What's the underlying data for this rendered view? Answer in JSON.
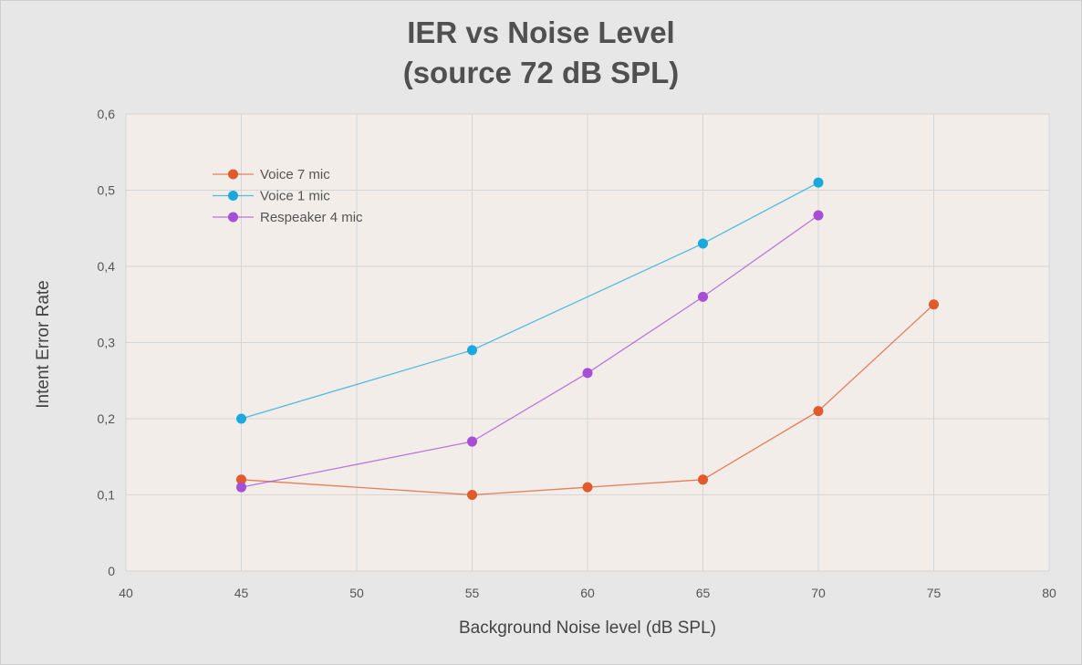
{
  "chart_data": {
    "type": "line",
    "title": "IER vs Noise Level",
    "subtitle": "(source 72 dB SPL)",
    "xlabel": "Background Noise level (dB SPL)",
    "ylabel": "Intent Error Rate",
    "xlim": [
      40,
      80
    ],
    "ylim": [
      0,
      0.6
    ],
    "x_ticks": [
      40,
      45,
      50,
      55,
      60,
      65,
      70,
      75,
      80
    ],
    "y_ticks": [
      0,
      0.1,
      0.2,
      0.3,
      0.4,
      0.5,
      0.6
    ],
    "y_tick_labels": [
      "0",
      "0,1",
      "0,2",
      "0,3",
      "0,4",
      "0,5",
      "0,6"
    ],
    "grid": true,
    "legend_position": "top-left",
    "series": [
      {
        "name": "Voice 7 mic",
        "color": "#e05a2b",
        "x": [
          45,
          55,
          60,
          65,
          70,
          75
        ],
        "y": [
          0.12,
          0.1,
          0.11,
          0.12,
          0.21,
          0.35
        ]
      },
      {
        "name": "Voice 1 mic",
        "color": "#1ba9dd",
        "x": [
          45,
          55,
          65,
          70
        ],
        "y": [
          0.2,
          0.29,
          0.43,
          0.51
        ]
      },
      {
        "name": "Respeaker 4 mic",
        "color": "#a64fd4",
        "x": [
          45,
          55,
          60,
          65,
          70
        ],
        "y": [
          0.11,
          0.17,
          0.26,
          0.36,
          0.467
        ]
      }
    ]
  }
}
